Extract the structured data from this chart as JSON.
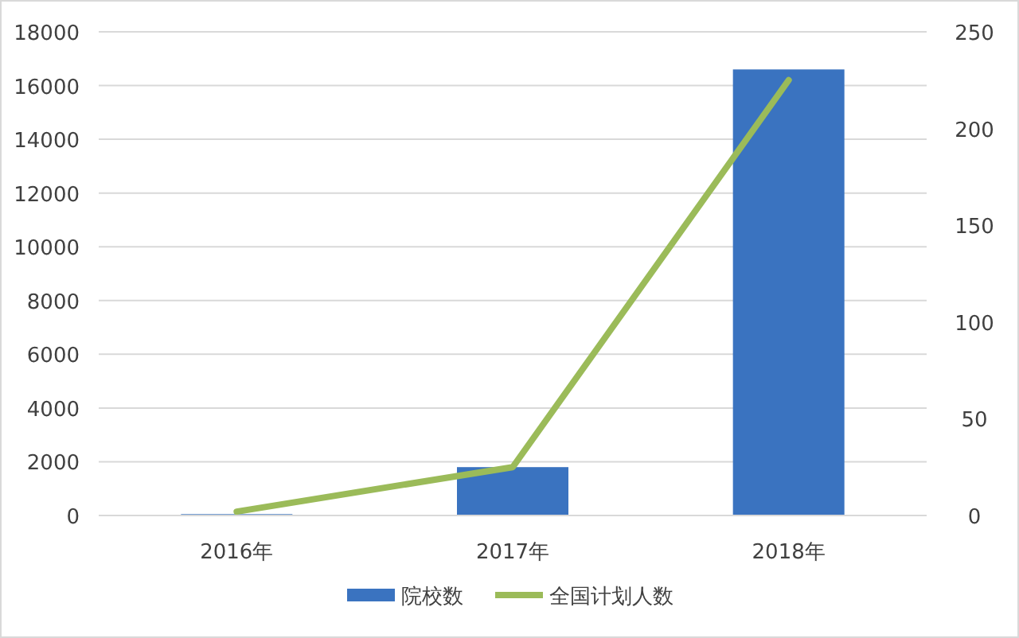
{
  "chart_data": {
    "type": "bar",
    "categories": [
      "2016年",
      "2017年",
      "2018年"
    ],
    "series": [
      {
        "name": "院校数",
        "color": "#3a73c0",
        "values": [
          50,
          1800,
          16600
        ]
      },
      {
        "name": "全国计划人数",
        "type": "line",
        "axis": "y2",
        "color": "#9bbb59",
        "values": [
          2,
          25,
          225
        ]
      }
    ],
    "ylim": [
      0,
      18000
    ],
    "yticks": [
      0,
      2000,
      4000,
      6000,
      8000,
      10000,
      12000,
      14000,
      16000,
      18000
    ],
    "y2lim": [
      0,
      250
    ],
    "y2ticks": [
      0,
      50,
      100,
      150,
      200,
      250
    ],
    "grid": "y",
    "legend": "bottom",
    "marker": "none",
    "line_style": "solid"
  }
}
